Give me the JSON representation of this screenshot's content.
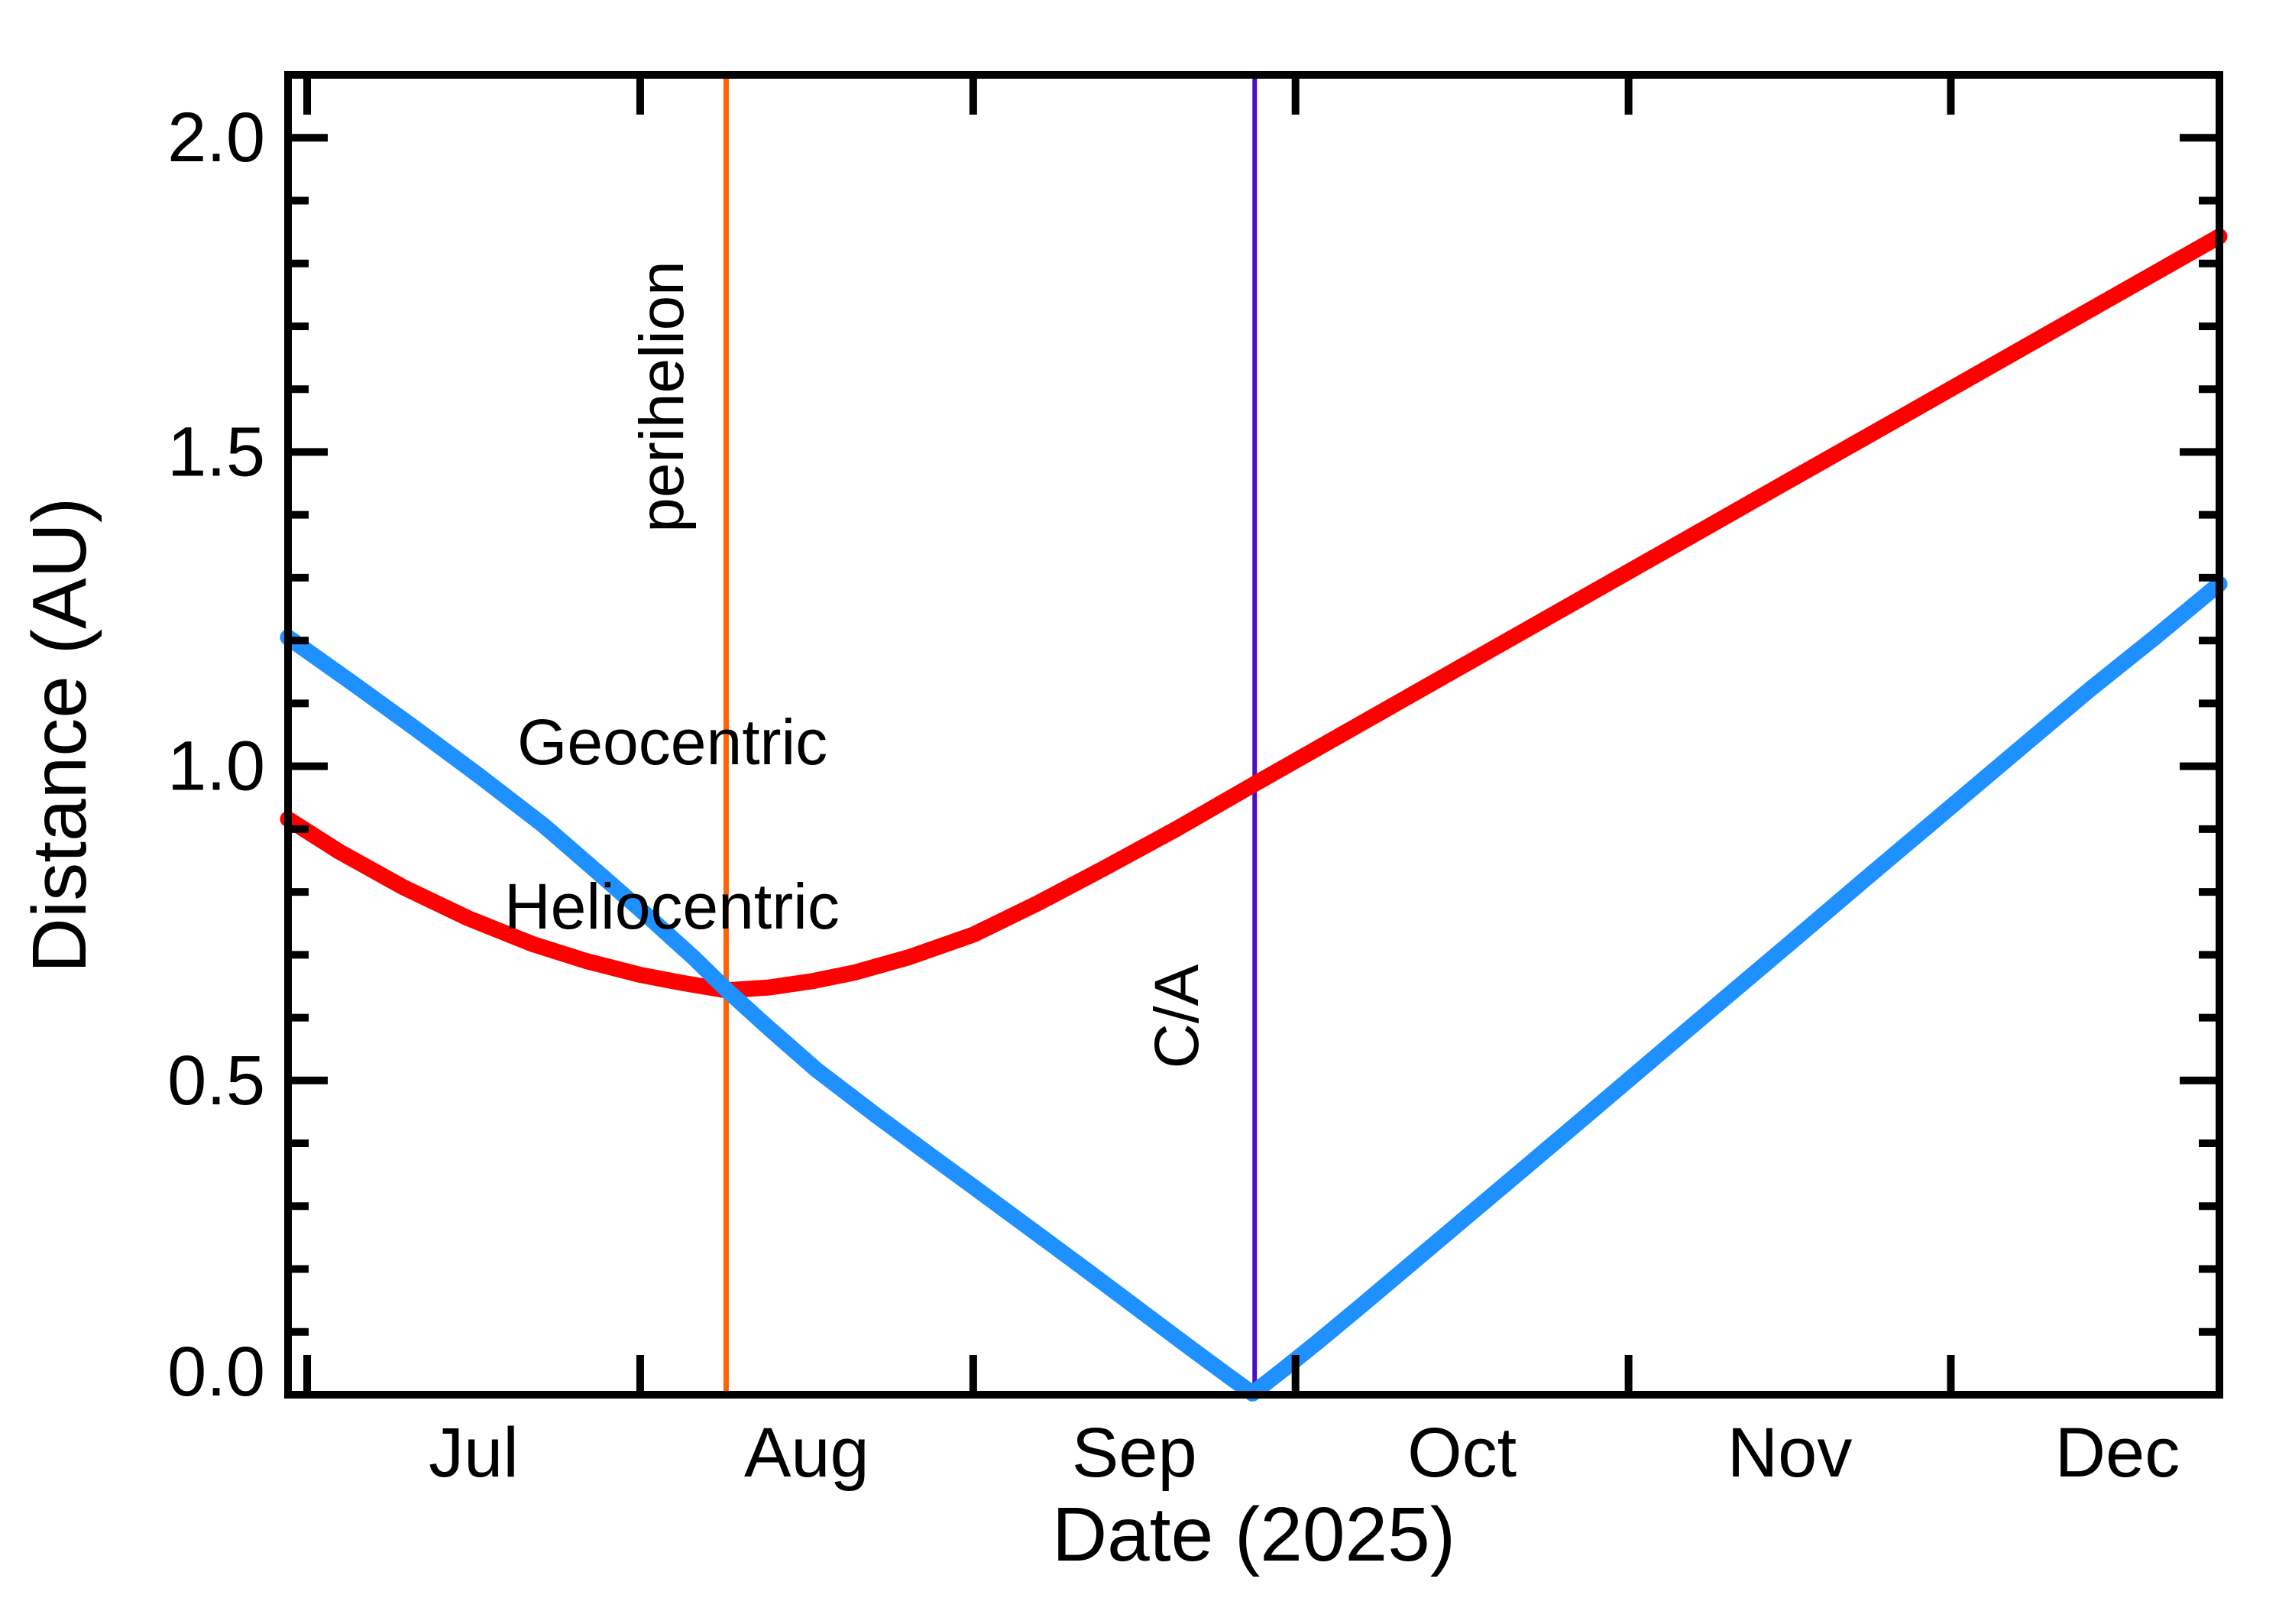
{
  "figure": {
    "background": "#ffffff",
    "xlabel": "Date (2025)",
    "ylabel": "Distance (AU)"
  },
  "colors": {
    "geocentric": "#1E90FF",
    "heliocentric": "#FF0000",
    "perihelion": "#FF6200",
    "close_approach": "#4B0FC8",
    "axis": "#000000"
  },
  "labels": {
    "geocentric": "Geocentric",
    "heliocentric": "Heliocentric",
    "perihelion": "perihelion",
    "close_approach": "C/A"
  },
  "chart_data": {
    "type": "line",
    "title": "",
    "xlabel": "Date (2025)",
    "ylabel": "Distance (AU)",
    "x_unit": "days since 2025-07-01",
    "xlim": [
      -1.78,
      178.0
    ],
    "ylim": [
      0.0,
      2.1
    ],
    "grid": false,
    "legend_position": "in-plot text annotations",
    "x_month_ticks": [
      {
        "label": "Jul",
        "start_day": 0,
        "mid_day": 15.5
      },
      {
        "label": "Aug",
        "start_day": 31,
        "mid_day": 46.5
      },
      {
        "label": "Sep",
        "start_day": 62,
        "mid_day": 77.0
      },
      {
        "label": "Oct",
        "start_day": 92,
        "mid_day": 107.5
      },
      {
        "label": "Nov",
        "start_day": 123,
        "mid_day": 138.0
      },
      {
        "label": "Dec",
        "start_day": 153,
        "mid_day": 168.5
      }
    ],
    "y_major_ticks": [
      {
        "value": 0.0,
        "label": "0.0"
      },
      {
        "value": 0.5,
        "label": "0.5"
      },
      {
        "value": 1.0,
        "label": "1.0"
      },
      {
        "value": 1.5,
        "label": "1.5"
      },
      {
        "value": 2.0,
        "label": "2.0"
      }
    ],
    "y_minor_step": 0.1,
    "series": [
      {
        "name": "Geocentric",
        "color_key": "geocentric",
        "points": [
          [
            -1.78,
            1.205
          ],
          [
            4,
            1.135
          ],
          [
            10,
            1.061
          ],
          [
            16,
            0.985
          ],
          [
            22,
            0.906
          ],
          [
            27,
            0.832
          ],
          [
            32,
            0.757
          ],
          [
            36,
            0.695
          ],
          [
            39,
            0.645
          ],
          [
            43,
            0.583
          ],
          [
            47.4,
            0.517
          ],
          [
            53,
            0.444
          ],
          [
            58,
            0.381
          ],
          [
            62,
            0.331
          ],
          [
            67,
            0.268
          ],
          [
            72,
            0.205
          ],
          [
            77,
            0.141
          ],
          [
            82,
            0.077
          ],
          [
            85.5,
            0.033
          ],
          [
            88,
            0.002
          ],
          [
            91,
            0.042
          ],
          [
            94,
            0.083
          ],
          [
            98,
            0.14
          ],
          [
            103,
            0.212
          ],
          [
            108,
            0.284
          ],
          [
            113,
            0.356
          ],
          [
            119,
            0.443
          ],
          [
            125,
            0.53
          ],
          [
            131,
            0.617
          ],
          [
            138,
            0.718
          ],
          [
            145,
            0.82
          ],
          [
            152,
            0.921
          ],
          [
            159,
            1.022
          ],
          [
            166,
            1.123
          ],
          [
            172,
            1.205
          ],
          [
            178,
            1.29
          ]
        ]
      },
      {
        "name": "Heliocentric",
        "color_key": "heliocentric",
        "points": [
          [
            -1.78,
            0.916
          ],
          [
            3,
            0.864
          ],
          [
            9,
            0.807
          ],
          [
            15,
            0.758
          ],
          [
            21,
            0.717
          ],
          [
            26,
            0.69
          ],
          [
            31,
            0.668
          ],
          [
            35,
            0.655
          ],
          [
            39,
            0.6435
          ],
          [
            43,
            0.648
          ],
          [
            47,
            0.658
          ],
          [
            51,
            0.672
          ],
          [
            56,
            0.696
          ],
          [
            62,
            0.732
          ],
          [
            68,
            0.782
          ],
          [
            74,
            0.836
          ],
          [
            81,
            0.901
          ],
          [
            88,
            0.97
          ],
          [
            98,
            1.067
          ],
          [
            108,
            1.164
          ],
          [
            118,
            1.261
          ],
          [
            128,
            1.358
          ],
          [
            138,
            1.455
          ],
          [
            148,
            1.552
          ],
          [
            158,
            1.649
          ],
          [
            168,
            1.746
          ],
          [
            178,
            1.843
          ]
        ]
      }
    ],
    "vlines": [
      {
        "label": "perihelion",
        "day": 39.0,
        "date": "2025-08-09",
        "color_key": "perihelion",
        "width": 7
      },
      {
        "label": "C/A",
        "day": 88.2,
        "date": "2025-09-27",
        "color_key": "close_approach",
        "width": 6
      }
    ]
  }
}
